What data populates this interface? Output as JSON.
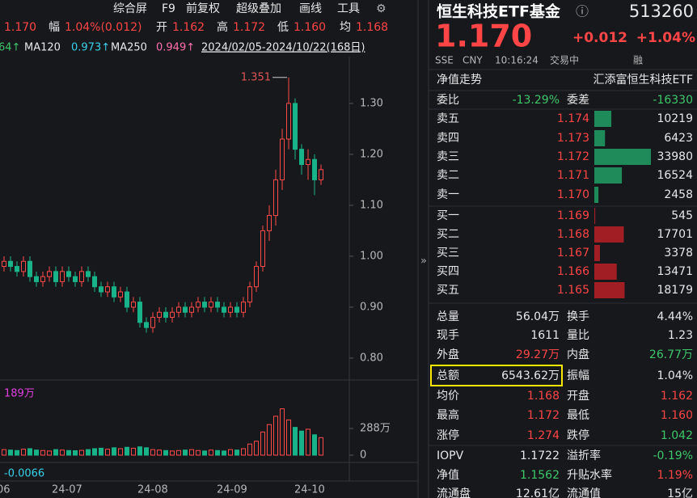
{
  "toolbar": {
    "items": [
      "综合屏",
      "F9",
      "前复权",
      "超级叠加",
      "画线",
      "工具"
    ]
  },
  "quote_line": {
    "price": "1.170",
    "amp_label": "幅",
    "amp": "1.04%(0.012)",
    "open_label": "开",
    "open": "1.162",
    "high_label": "高",
    "high": "1.172",
    "low_label": "低",
    "low": "1.160",
    "avg_label": "均",
    "avg": "1.168"
  },
  "ma_line": {
    "ma60_tail": "64↑",
    "ma120_label": "MA120",
    "ma120": "0.973↑",
    "ma250_label": "MA250",
    "ma250": "0.949↑",
    "range": "2024/02/05-2024/10/22(168日)"
  },
  "chart_data": [
    {
      "type": "candlestick",
      "up_color": "#ff4a4a",
      "down_color": "#19b38a",
      "open": [
        0.98,
        0.99,
        0.98,
        0.97,
        0.99,
        0.96,
        0.95,
        0.96,
        0.97,
        0.95,
        0.97,
        0.96,
        0.95,
        0.97,
        0.96,
        0.94,
        0.93,
        0.94,
        0.92,
        0.93,
        0.9,
        0.91,
        0.87,
        0.86,
        0.88,
        0.89,
        0.88,
        0.89,
        0.9,
        0.89,
        0.9,
        0.91,
        0.9,
        0.91,
        0.9,
        0.89,
        0.9,
        0.89,
        0.91,
        0.94,
        0.98,
        1.05,
        1.08,
        1.15,
        1.23,
        1.3,
        1.21,
        1.18,
        1.19,
        1.15
      ],
      "high": [
        1.0,
        1.0,
        0.99,
        1.0,
        1.0,
        0.97,
        0.97,
        0.98,
        0.98,
        0.98,
        0.98,
        0.97,
        0.98,
        0.98,
        0.97,
        0.95,
        0.95,
        0.95,
        0.94,
        0.94,
        0.92,
        0.92,
        0.88,
        0.89,
        0.9,
        0.9,
        0.9,
        0.91,
        0.91,
        0.91,
        0.92,
        0.92,
        0.92,
        0.92,
        0.91,
        0.91,
        0.91,
        0.92,
        0.95,
        0.99,
        1.06,
        1.1,
        1.17,
        1.25,
        1.351,
        1.31,
        1.22,
        1.21,
        1.2,
        1.18
      ],
      "low": [
        0.97,
        0.97,
        0.96,
        0.96,
        0.95,
        0.94,
        0.94,
        0.95,
        0.94,
        0.94,
        0.95,
        0.94,
        0.94,
        0.95,
        0.93,
        0.92,
        0.92,
        0.91,
        0.91,
        0.89,
        0.89,
        0.86,
        0.85,
        0.85,
        0.87,
        0.87,
        0.87,
        0.88,
        0.88,
        0.88,
        0.89,
        0.89,
        0.89,
        0.89,
        0.88,
        0.88,
        0.88,
        0.88,
        0.9,
        0.93,
        0.97,
        1.03,
        1.06,
        1.13,
        1.21,
        1.19,
        1.16,
        1.15,
        1.12,
        1.14
      ],
      "close": [
        0.99,
        0.98,
        0.97,
        0.99,
        0.96,
        0.95,
        0.96,
        0.97,
        0.95,
        0.97,
        0.96,
        0.95,
        0.97,
        0.96,
        0.94,
        0.93,
        0.94,
        0.92,
        0.93,
        0.9,
        0.91,
        0.87,
        0.86,
        0.88,
        0.89,
        0.88,
        0.89,
        0.9,
        0.89,
        0.9,
        0.91,
        0.9,
        0.91,
        0.9,
        0.89,
        0.9,
        0.89,
        0.91,
        0.94,
        0.98,
        1.05,
        1.08,
        1.15,
        1.23,
        1.3,
        1.21,
        1.18,
        1.19,
        1.15,
        1.17
      ],
      "ylim": [
        0.765,
        1.384
      ],
      "yticks": [
        {
          "value": 1.3,
          "label": "1.30"
        },
        {
          "value": 1.2,
          "label": "1.20"
        },
        {
          "value": 1.1,
          "label": "1.10"
        },
        {
          "value": 1.0,
          "label": "1.00"
        },
        {
          "value": 0.9,
          "label": "0.90"
        },
        {
          "value": 0.8,
          "label": "0.80"
        }
      ],
      "annotations": [
        {
          "text": "1.351"
        }
      ]
    },
    {
      "type": "bar",
      "label": "189万",
      "values": [
        60,
        55,
        50,
        65,
        70,
        55,
        50,
        45,
        60,
        55,
        50,
        48,
        52,
        60,
        70,
        75,
        65,
        80,
        70,
        85,
        75,
        90,
        80,
        60,
        55,
        50,
        45,
        50,
        55,
        60,
        50,
        45,
        55,
        50,
        45,
        60,
        55,
        70,
        120,
        150,
        250,
        330,
        420,
        500,
        380,
        300,
        260,
        280,
        220,
        189
      ],
      "ylim": [
        0,
        593
      ],
      "yticks": [
        {
          "value": 288,
          "label": "288万"
        },
        0
      ]
    }
  ],
  "macd_value": "-0.0066",
  "dates": [
    "06",
    "24-07",
    "24-08",
    "24-09",
    "24-10"
  ],
  "panel": {
    "name": "恒生科技ETF基金",
    "info": "ⓘ",
    "code": "513260",
    "price": "1.170",
    "change": "+0.012",
    "change_pct": "+1.04%",
    "meta": [
      "SSE",
      "CNY",
      "10:16:24",
      "交易中",
      "融"
    ],
    "nav_trend": "净值走势",
    "fund_company": "汇添富恒生科技ETF",
    "weibi_label": "委比",
    "weibi": "-13.29%",
    "weicha_label": "委差",
    "weicha": "-16330",
    "asks": [
      {
        "label": "卖五",
        "price": "1.174",
        "volume": 10219
      },
      {
        "label": "卖四",
        "price": "1.173",
        "volume": 6423
      },
      {
        "label": "卖三",
        "price": "1.172",
        "volume": 33980
      },
      {
        "label": "卖二",
        "price": "1.171",
        "volume": 16524
      },
      {
        "label": "卖一",
        "price": "1.170",
        "volume": 2458
      }
    ],
    "bids": [
      {
        "label": "买一",
        "price": "1.169",
        "volume": 545
      },
      {
        "label": "买二",
        "price": "1.168",
        "volume": 17701
      },
      {
        "label": "买三",
        "price": "1.167",
        "volume": 3378
      },
      {
        "label": "买四",
        "price": "1.166",
        "volume": 13471
      },
      {
        "label": "买五",
        "price": "1.165",
        "volume": 18179
      }
    ],
    "stats": [
      [
        "总量",
        "56.04万",
        "换手",
        "4.44%"
      ],
      [
        "现手",
        "1611",
        "量比",
        "1.23"
      ],
      [
        "外盘",
        "29.27万",
        "内盘",
        "26.77万"
      ],
      [
        "总额",
        "6543.62万",
        "振幅",
        "1.04%"
      ],
      [
        "均价",
        "1.168",
        "开盘",
        "1.162"
      ],
      [
        "最高",
        "1.172",
        "最低",
        "1.160"
      ],
      [
        "涨停",
        "1.274",
        "跌停",
        "1.042"
      ],
      [
        "IOPV",
        "1.1722",
        "溢折率",
        "-0.19%"
      ],
      [
        "净值",
        "1.1562",
        "升贴水率",
        "1.19%"
      ],
      [
        "流通盘",
        "12.61亿",
        "流通值",
        "15亿"
      ]
    ]
  }
}
